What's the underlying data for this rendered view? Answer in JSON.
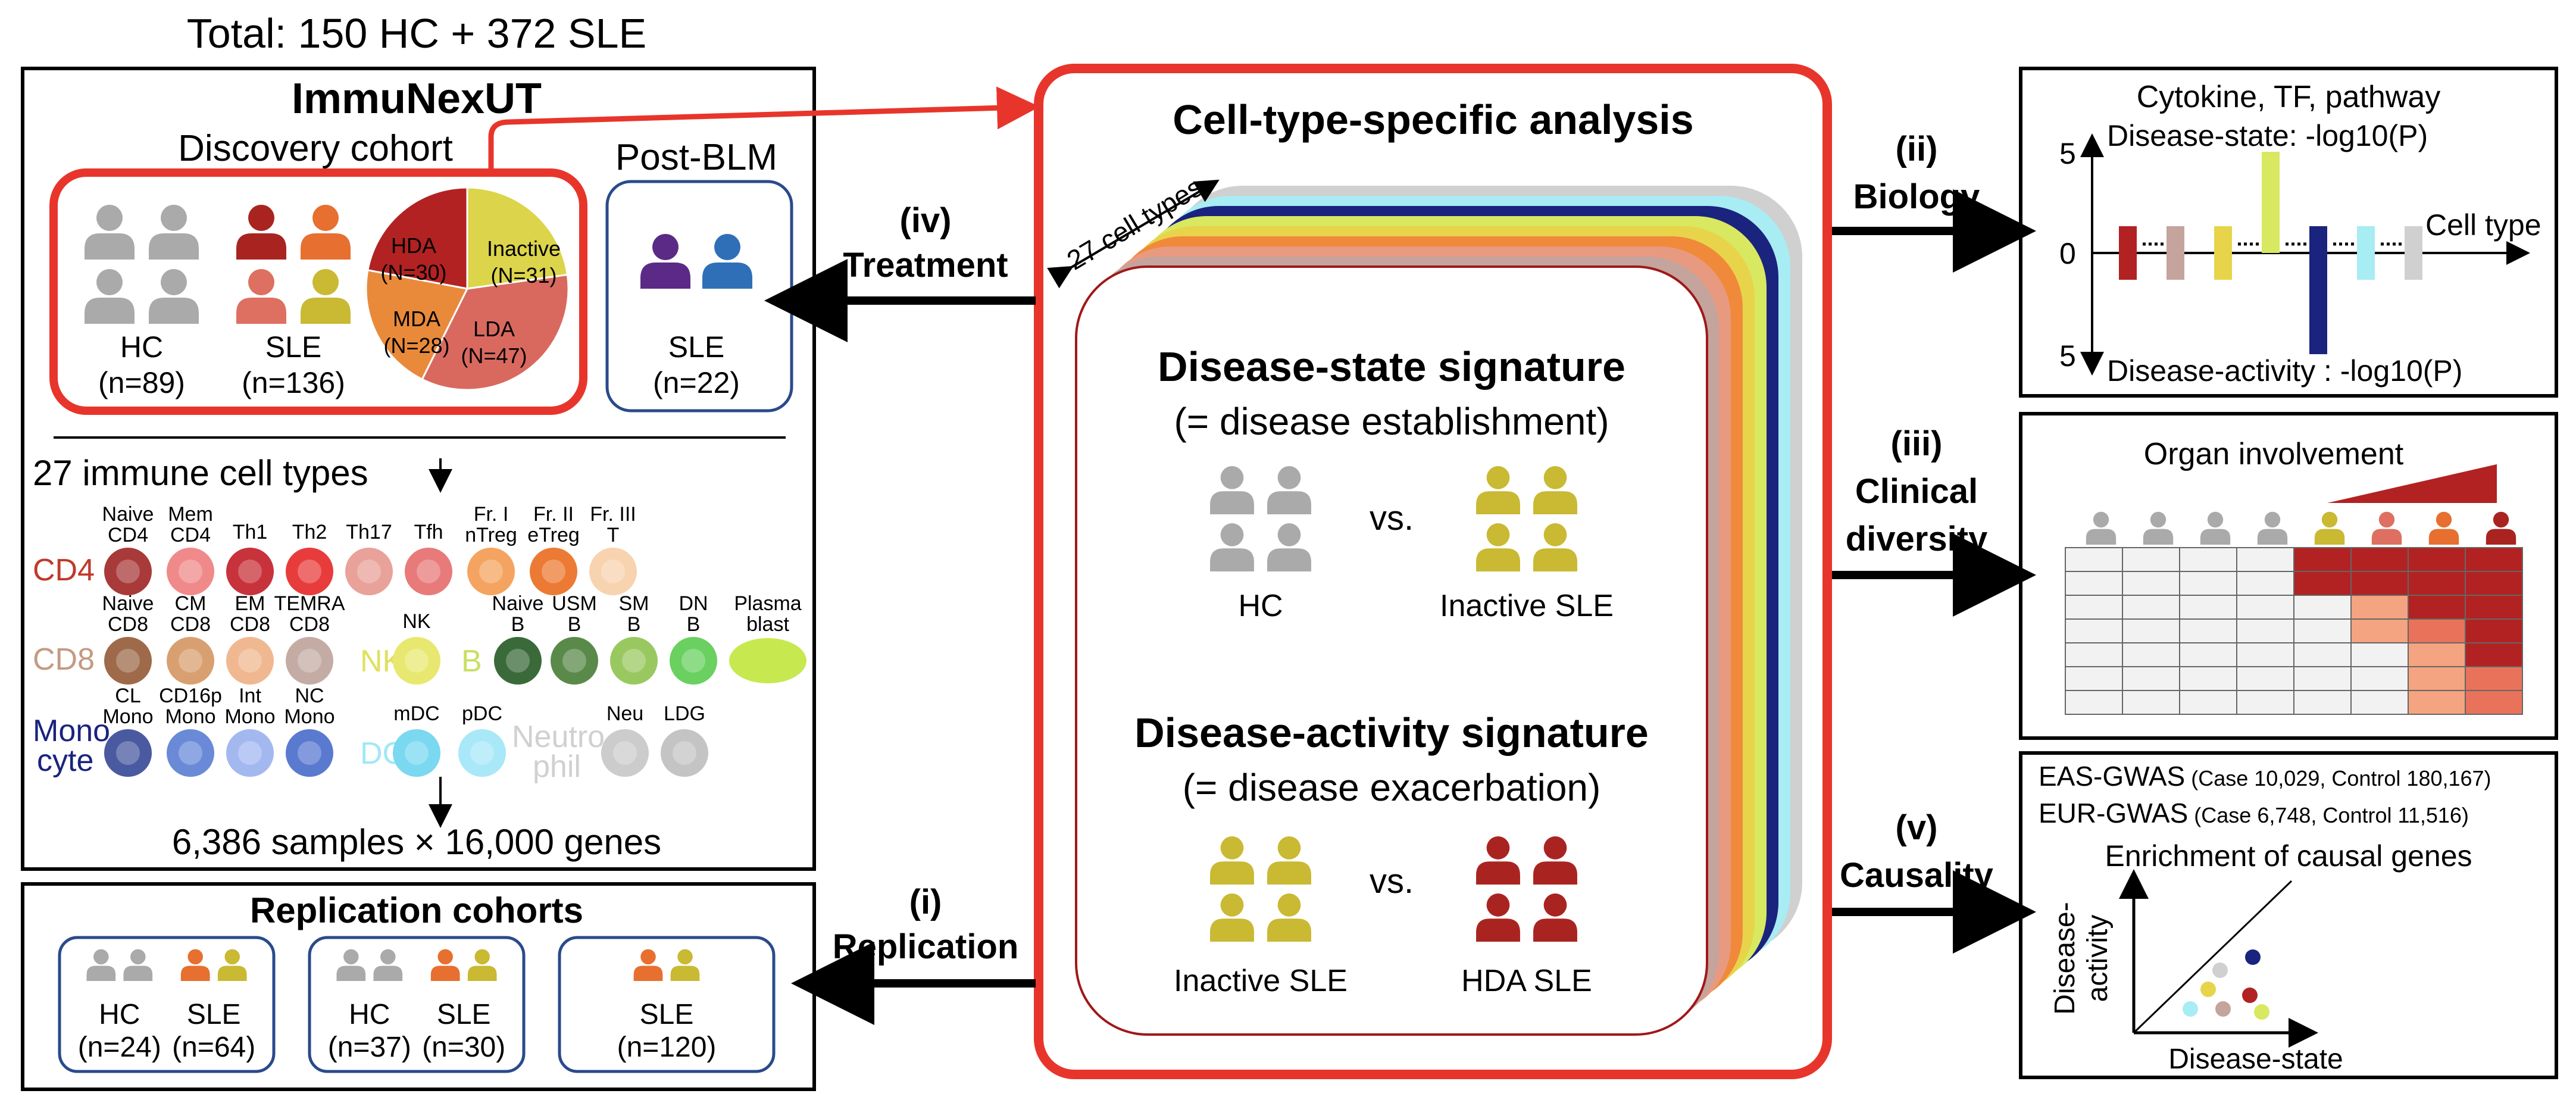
{
  "total": "Total: 150 HC + 372 SLE",
  "immunexut": {
    "title": "ImmuNexUT",
    "discovery": "Discovery cohort",
    "post_blm": "Post-BLM",
    "hc_label": "HC",
    "hc_n": "(n=89)",
    "sle_label": "SLE",
    "sle_n": "(n=136)",
    "post_sle_label": "SLE",
    "post_sle_n": "(n=22)",
    "pie": [
      {
        "label": "Inactive",
        "n": "(N=31)",
        "value": 31,
        "color": "#dcd44a"
      },
      {
        "label": "LDA",
        "n": "(N=47)",
        "value": 47,
        "color": "#d9695f"
      },
      {
        "label": "MDA",
        "n": "(N=28)",
        "value": 28,
        "color": "#e98a3a"
      },
      {
        "label": "HDA",
        "n": "(N=30)",
        "value": 30,
        "color": "#b22222"
      }
    ],
    "cell_types_title": "27 immune cell types",
    "samples": "6,386 samples × 16,000 genes",
    "rows": [
      {
        "group": "CD4",
        "group_color": "#c0392b",
        "cells": [
          {
            "l1": "Naive",
            "l2": "CD4",
            "color": "#a83a3a"
          },
          {
            "l1": "Mem",
            "l2": "CD4",
            "color": "#f08a8a"
          },
          {
            "l1": "Th1",
            "l2": "",
            "color": "#c8323a"
          },
          {
            "l1": "Th2",
            "l2": "",
            "color": "#e83c3c"
          },
          {
            "l1": "Th17",
            "l2": "",
            "color": "#e8a29a"
          },
          {
            "l1": "Tfh",
            "l2": "",
            "color": "#e87a7a"
          },
          {
            "l1": "Fr. I",
            "l2": "nTreg",
            "color": "#f4a460"
          },
          {
            "l1": "Fr. II",
            "l2": "eTreg",
            "color": "#ec7a34"
          },
          {
            "l1": "Fr. III",
            "l2": "T",
            "color": "#f8d3b0"
          }
        ]
      },
      {
        "group": "CD8",
        "group_color": "#c49a82",
        "cells": [
          {
            "l1": "Naive",
            "l2": "CD8",
            "color": "#9e6a4a"
          },
          {
            "l1": "CM",
            "l2": "CD8",
            "color": "#d8a070"
          },
          {
            "l1": "EM",
            "l2": "CD8",
            "color": "#f0b890"
          },
          {
            "l1": "TEMRA",
            "l2": "CD8",
            "color": "#c4aca4"
          },
          {
            "l1": "NK",
            "l2": "",
            "color": "#e8e870",
            "prefix": "NK",
            "prefix_color": "#e0e060"
          },
          {
            "l1": "Naive",
            "l2": "B",
            "color": "#3a6a3a",
            "prefix": "B",
            "prefix_color": "#c8e060"
          },
          {
            "l1": "USM",
            "l2": "B",
            "color": "#5a8a4a"
          },
          {
            "l1": "SM",
            "l2": "B",
            "color": "#9ac860"
          },
          {
            "l1": "DN",
            "l2": "B",
            "color": "#6ad060"
          },
          {
            "l1": "Plasma",
            "l2": "blast",
            "color": "#c8e850"
          }
        ]
      },
      {
        "group": "Mono",
        "group2": "cyte",
        "group_color": "#1a237e",
        "cells": [
          {
            "l1": "CL",
            "l2": "Mono",
            "color": "#4a5aa0"
          },
          {
            "l1": "CD16p",
            "l2": "Mono",
            "color": "#6a8ad8"
          },
          {
            "l1": "Int",
            "l2": "Mono",
            "color": "#a4b8f0"
          },
          {
            "l1": "NC",
            "l2": "Mono",
            "color": "#5a7ad0"
          },
          {
            "l1": "mDC",
            "l2": "",
            "color": "#7ad8f0",
            "prefix": "DC",
            "prefix_color": "#a0e8f8"
          },
          {
            "l1": "pDC",
            "l2": "",
            "color": "#a8e8f8"
          },
          {
            "l1": "",
            "l2": "",
            "color": "#ffffff",
            "prefix": "Neutro",
            "prefix2": "phil",
            "prefix_color": "#d0d0d0"
          },
          {
            "l1": "Neu",
            "l2": "",
            "color": "#cccccc"
          },
          {
            "l1": "LDG",
            "l2": "",
            "color": "#c4c4c4"
          }
        ]
      }
    ]
  },
  "replication": {
    "title": "Replication cohorts",
    "groups": [
      {
        "items": [
          {
            "label": "HC",
            "n": "(n=24)"
          },
          {
            "label": "SLE",
            "n": "(n=64)"
          }
        ]
      },
      {
        "items": [
          {
            "label": "HC",
            "n": "(n=37)"
          },
          {
            "label": "SLE",
            "n": "(n=30)"
          }
        ]
      },
      {
        "items": [
          {
            "label": "SLE",
            "n": "(n=120)"
          }
        ]
      }
    ]
  },
  "center": {
    "title": "Cell-type-specific analysis",
    "cell_types": "27 cell types",
    "state_title": "Disease-state signature",
    "state_sub": "(= disease establishment)",
    "state_left": "HC",
    "state_right": "Inactive SLE",
    "vs": "vs.",
    "activity_title": "Disease-activity signature",
    "activity_sub": "(= disease exacerbation)",
    "activity_left": "Inactive SLE",
    "activity_right": "HDA SLE"
  },
  "arrows": {
    "treatment_num": "(iv)",
    "treatment": "Treatment",
    "replication_num": "(i)",
    "replication": "Replication",
    "biology_num": "(ii)",
    "biology": "Biology",
    "clinical_num": "(iii)",
    "clinical1": "Clinical",
    "clinical2": "diversity",
    "causality_num": "(v)",
    "causality": "Causality"
  },
  "biology_panel": {
    "title": "Cytokine, TF, pathway",
    "top_label": "Disease-state: -log10(P)",
    "bottom_label": "Disease-activity : -log10(P)",
    "x_label": "Cell type",
    "tick_top": "5",
    "tick_zero": "0",
    "tick_bottom": "5"
  },
  "clinical_panel": {
    "title": "Organ involvement"
  },
  "causality_panel": {
    "eas": "EAS-GWAS",
    "eas_detail": "(Case 10,029, Control 180,167)",
    "eur": "EUR-GWAS",
    "eur_detail": "(Case 6,748, Control 11,516)",
    "title": "Enrichment of causal genes",
    "y_label1": "Disease-",
    "y_label2": "activity",
    "x_label": "Disease-state"
  },
  "colors": {
    "red": "#e8352b",
    "dark_red": "#b22222",
    "navy": "#2a4a8a",
    "grey_person": "#aaaaaa",
    "olive_person": "#c9b933",
    "darkred_person": "#a92420",
    "orange_person": "#e76f2f",
    "salmon_person": "#dd7060"
  }
}
